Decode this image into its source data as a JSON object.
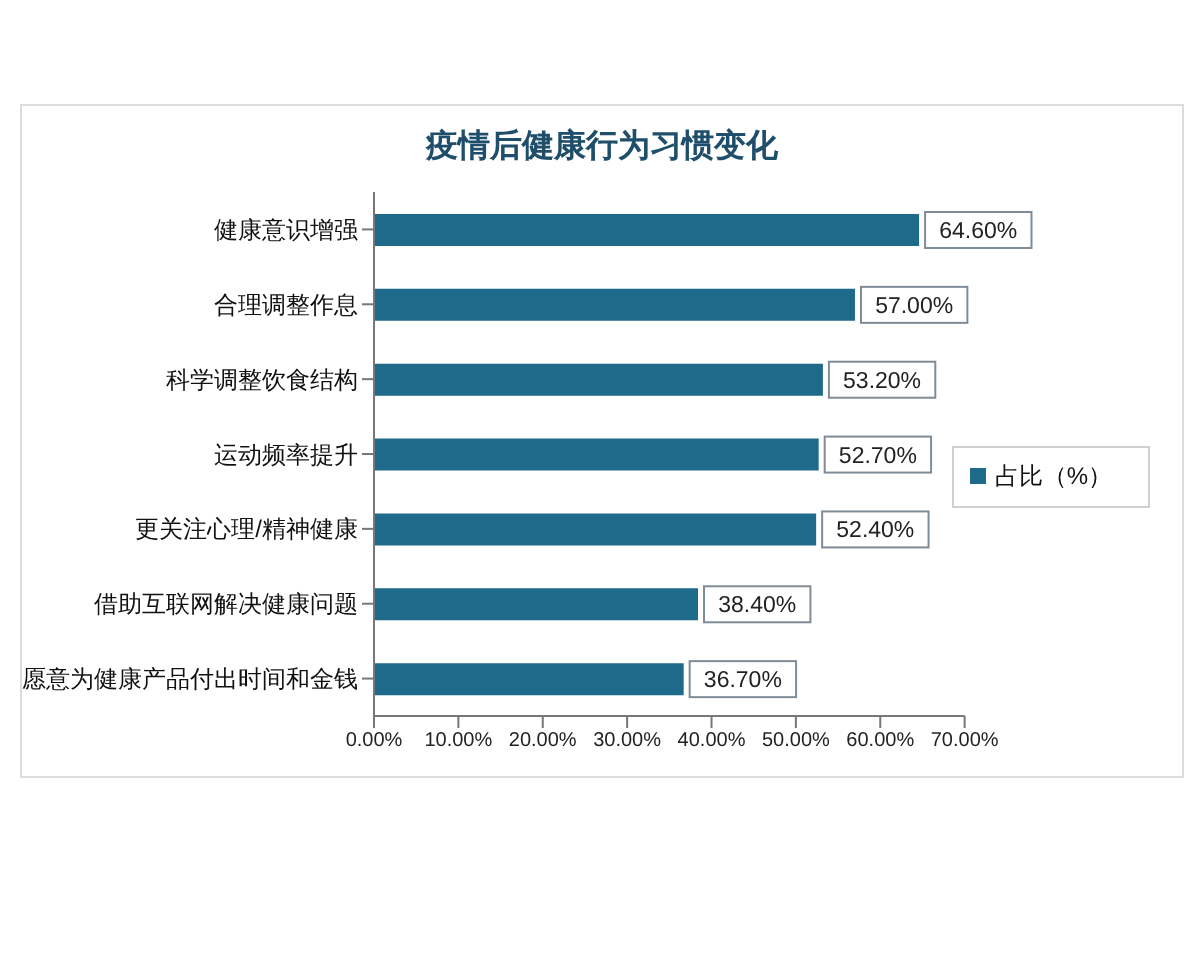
{
  "chart_data": {
    "type": "bar",
    "orientation": "horizontal",
    "title": "疫情后健康行为习惯变化",
    "categories": [
      "健康意识增强",
      "合理调整作息",
      "科学调整饮食结构",
      "运动频率提升",
      "更关注心理/精神健康",
      "借助互联网解决健康问题",
      "愿意为健康产品付出时间和金钱"
    ],
    "series": [
      {
        "name": "占比（%）",
        "color": "#1d6a8b",
        "values": [
          64.6,
          57.0,
          53.2,
          52.7,
          52.4,
          38.4,
          36.7
        ],
        "value_labels": [
          "64.60%",
          "57.00%",
          "53.20%",
          "52.70%",
          "52.40%",
          "38.40%",
          "36.70%"
        ]
      }
    ],
    "xlim": [
      0,
      70
    ],
    "xticks": [
      {
        "value": 0,
        "label": "0.00%"
      },
      {
        "value": 10,
        "label": "10.00%"
      },
      {
        "value": 20,
        "label": "20.00%"
      },
      {
        "value": 30,
        "label": "30.00%"
      },
      {
        "value": 40,
        "label": "40.00%"
      },
      {
        "value": 50,
        "label": "50.00%"
      },
      {
        "value": 60,
        "label": "60.00%"
      },
      {
        "value": 70,
        "label": "70.00%"
      }
    ],
    "legend": "right"
  }
}
